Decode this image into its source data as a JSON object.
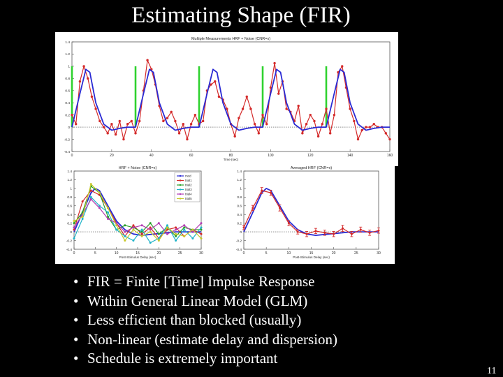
{
  "slide": {
    "title": "Estimating Shape (FIR)",
    "page_number": "11",
    "bullet_glyph": "•",
    "bullets": [
      "FIR = Finite [Time] Impulse Response",
      "Within General Linear Model (GLM)",
      "Less efficient than blocked (usually)",
      "Non-linear (estimate delay and dispersion)",
      "Schedule is extremely important"
    ]
  },
  "chart_data": [
    {
      "type": "line",
      "title": "Multiple Measurements HRF + Noise (CNR=x)",
      "xlabel": "Time (sec)",
      "xlim": [
        0,
        160
      ],
      "ylim": [
        -0.4,
        1.4
      ],
      "x_ticks": [
        "0",
        "20",
        "40",
        "60",
        "80",
        "100",
        "120",
        "140",
        "160"
      ],
      "y_ticks": [
        "1.4",
        "1.2",
        "1",
        "0.8",
        "0.6",
        "0.4",
        "0.2",
        "0",
        "-0.2",
        "-0.4"
      ],
      "stimulus_onsets": [
        0,
        32,
        64,
        96,
        128
      ],
      "series": [
        {
          "color": "#d42a2a",
          "x": [
            0,
            2,
            4,
            6,
            8,
            10,
            12,
            14,
            16,
            18,
            20,
            22,
            24,
            26,
            28,
            30,
            32,
            34,
            36,
            38,
            40,
            42,
            44,
            46,
            48,
            50,
            52,
            54,
            56,
            58,
            60,
            62,
            64,
            66,
            68,
            70,
            72,
            74,
            76,
            78,
            80,
            82,
            84,
            86,
            88,
            90,
            92,
            94,
            96,
            98,
            100,
            102,
            104,
            106,
            108,
            110,
            112,
            114,
            116,
            118,
            120,
            122,
            124,
            126,
            128,
            130,
            132,
            134,
            136,
            138,
            140,
            142,
            144,
            146,
            148,
            150,
            152,
            154,
            156,
            158,
            160
          ],
          "y": [
            0.2,
            0.05,
            0.75,
            1.0,
            0.8,
            0.5,
            0.3,
            0.1,
            0.0,
            -0.1,
            0.05,
            -0.12,
            0.1,
            -0.2,
            0.05,
            0.1,
            -0.1,
            0.1,
            0.6,
            1.1,
            0.95,
            0.7,
            0.35,
            0.1,
            0.15,
            0.25,
            0.1,
            -0.1,
            0.05,
            -0.2,
            0.05,
            0.2,
            0.05,
            0.1,
            0.6,
            0.7,
            0.75,
            0.5,
            0.45,
            0.3,
            0.05,
            -0.15,
            0.15,
            0.3,
            0.5,
            0.3,
            0.05,
            -0.1,
            0.2,
            0.05,
            0.65,
            1.05,
            0.55,
            0.75,
            0.3,
            0.25,
            0.1,
            0.35,
            -0.1,
            0.05,
            0.2,
            0.1,
            -0.15,
            0.05,
            0.3,
            -0.1,
            0.2,
            0.9,
            1.0,
            0.65,
            0.3,
            0.1,
            -0.2,
            -0.05,
            0.0,
            0.0,
            0.05,
            0.0,
            0.0,
            -0.1,
            -0.2
          ]
        },
        {
          "color": "#2a2ad4",
          "x": [
            0,
            4,
            7,
            9,
            12,
            16,
            20,
            24,
            28,
            32,
            36,
            39,
            41,
            44,
            48,
            52,
            56,
            60,
            64,
            68,
            71,
            73,
            76,
            80,
            84,
            88,
            92,
            96,
            100,
            103,
            105,
            108,
            112,
            116,
            120,
            124,
            128,
            132,
            135,
            137,
            140,
            144,
            148,
            152,
            156,
            160
          ],
          "y": [
            0.0,
            0.55,
            0.95,
            0.9,
            0.4,
            0.05,
            -0.05,
            -0.02,
            0.0,
            0.0,
            0.55,
            0.95,
            0.9,
            0.4,
            0.05,
            -0.05,
            -0.02,
            0.0,
            0.0,
            0.55,
            0.95,
            0.9,
            0.4,
            0.05,
            -0.05,
            -0.02,
            0.0,
            0.0,
            0.55,
            0.95,
            0.9,
            0.4,
            0.05,
            -0.05,
            -0.02,
            0.0,
            0.0,
            0.55,
            0.95,
            0.9,
            0.4,
            0.05,
            -0.05,
            -0.02,
            0.0,
            0.0
          ]
        }
      ]
    },
    {
      "type": "line",
      "title": "HRF + Noise (CNR=x)",
      "xlabel": "Post-Stimulus Delay (sec)",
      "xlim": [
        0,
        30
      ],
      "ylim": [
        -0.4,
        1.4
      ],
      "x_ticks": [
        "0",
        "5",
        "10",
        "15",
        "20",
        "25",
        "30"
      ],
      "y_ticks": [
        "1.4",
        "1.2",
        "1",
        "0.8",
        "0.6",
        "0.4",
        "0.2",
        "0",
        "-0.2",
        "-0.4"
      ],
      "legend_position": "top-right",
      "series": [
        {
          "name": "mod",
          "color": "#2a2ad4",
          "x": [
            0,
            2,
            4,
            5,
            6,
            8,
            10,
            12,
            14,
            16,
            18,
            20,
            22,
            24,
            26,
            28,
            30
          ],
          "y": [
            0,
            0.45,
            0.9,
            1.0,
            0.95,
            0.6,
            0.25,
            0.05,
            -0.05,
            -0.08,
            -0.06,
            -0.04,
            -0.02,
            0,
            0,
            0,
            0
          ]
        },
        {
          "name": "trial1",
          "color": "#d42a2a",
          "x": [
            0,
            2,
            4,
            6,
            8,
            10,
            12,
            14,
            16,
            18,
            20,
            22,
            24,
            26,
            28,
            30
          ],
          "y": [
            0.05,
            0.7,
            0.95,
            0.85,
            0.55,
            0.2,
            -0.1,
            0.15,
            -0.05,
            0.1,
            -0.15,
            0.05,
            0.1,
            -0.1,
            0.05,
            -0.05
          ]
        },
        {
          "name": "trial2",
          "color": "#2aa02a",
          "x": [
            0,
            2,
            4,
            6,
            8,
            10,
            12,
            14,
            16,
            18,
            20,
            22,
            24,
            26,
            28,
            30
          ],
          "y": [
            0.2,
            0.45,
            1.05,
            0.9,
            0.35,
            0.05,
            0.15,
            0.1,
            0.0,
            0.2,
            -0.05,
            0.1,
            -0.1,
            0.1,
            0.05,
            0.05
          ]
        },
        {
          "name": "trial3",
          "color": "#1fb3c8",
          "x": [
            0,
            2,
            4,
            6,
            8,
            10,
            12,
            14,
            16,
            18,
            20,
            22,
            24,
            26,
            28,
            30
          ],
          "y": [
            -0.15,
            0.3,
            0.8,
            0.6,
            0.45,
            0.05,
            -0.1,
            -0.2,
            0.05,
            -0.25,
            -0.15,
            0.15,
            -0.2,
            0.05,
            -0.15,
            0.1
          ]
        },
        {
          "name": "trial4",
          "color": "#b23ab2",
          "x": [
            0,
            2,
            4,
            6,
            8,
            10,
            12,
            14,
            16,
            18,
            20,
            22,
            24,
            26,
            28,
            30
          ],
          "y": [
            0.1,
            0.4,
            0.75,
            0.55,
            0.3,
            0.2,
            0.0,
            0.1,
            0.15,
            0.05,
            0.2,
            -0.05,
            0.05,
            0.15,
            0.0,
            0.2
          ]
        },
        {
          "name": "trial5",
          "color": "#c8c82a",
          "x": [
            0,
            2,
            4,
            6,
            8,
            10,
            12,
            14,
            16,
            18,
            20,
            22,
            24,
            26,
            28,
            30
          ],
          "y": [
            0.25,
            0.35,
            1.1,
            0.9,
            0.55,
            0.15,
            -0.2,
            0.05,
            -0.1,
            0.0,
            -0.2,
            0.1,
            -0.05,
            -0.1,
            0.05,
            -0.15
          ]
        }
      ]
    },
    {
      "type": "line",
      "title": "Averaged HRF (CNR=x)",
      "xlabel": "Post-Stimulus Delay (sec)",
      "xlim": [
        0,
        30
      ],
      "ylim": [
        -0.4,
        1.4
      ],
      "x_ticks": [
        "0",
        "5",
        "10",
        "15",
        "20",
        "25",
        "30"
      ],
      "y_ticks": [
        "1.4",
        "1.2",
        "1",
        "0.8",
        "0.6",
        "0.4",
        "0.2",
        "0",
        "-0.2",
        "-0.4"
      ],
      "series": [
        {
          "color": "#2a2ad4",
          "x": [
            0,
            2,
            4,
            5,
            6,
            8,
            10,
            12,
            14,
            16,
            18,
            20,
            22,
            24,
            26,
            28,
            30
          ],
          "y": [
            0,
            0.45,
            0.9,
            1.0,
            0.95,
            0.6,
            0.25,
            0.05,
            -0.05,
            -0.08,
            -0.06,
            -0.04,
            -0.02,
            0,
            0,
            0,
            0
          ]
        },
        {
          "color": "#d42a2a",
          "x": [
            0,
            2,
            4,
            6,
            8,
            10,
            12,
            14,
            16,
            18,
            20,
            22,
            24,
            26,
            28,
            30
          ],
          "y": [
            0.1,
            0.55,
            0.95,
            0.9,
            0.55,
            0.2,
            0.0,
            -0.05,
            0.02,
            -0.02,
            -0.05,
            0.08,
            -0.05,
            0.05,
            -0.02,
            0.03
          ],
          "error": [
            0.05,
            0.06,
            0.07,
            0.06,
            0.07,
            0.06,
            0.05,
            0.06,
            0.06,
            0.06,
            0.06,
            0.07,
            0.06,
            0.06,
            0.06,
            0.06
          ]
        }
      ]
    }
  ]
}
